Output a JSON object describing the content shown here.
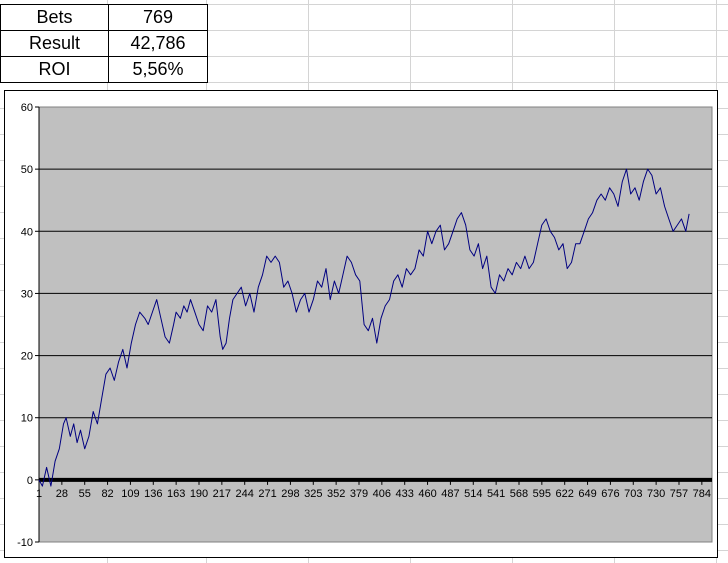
{
  "stats": [
    {
      "label": "Bets",
      "value": "769"
    },
    {
      "label": "Result",
      "value": "42,786"
    },
    {
      "label": "ROI",
      "value": "5,56%"
    }
  ],
  "chart_data": {
    "type": "line",
    "title": "",
    "xlabel": "",
    "ylabel": "",
    "ylim": [
      -10,
      60
    ],
    "yticks": [
      -10,
      0,
      10,
      20,
      30,
      40,
      50,
      60
    ],
    "xticks": [
      1,
      28,
      55,
      82,
      109,
      136,
      163,
      190,
      217,
      244,
      271,
      298,
      325,
      352,
      379,
      406,
      433,
      460,
      487,
      514,
      541,
      568,
      595,
      622,
      649,
      676,
      703,
      730,
      757,
      784
    ],
    "xlim": [
      1,
      796
    ],
    "grid": "horizontal",
    "legend": "none",
    "plot_background": "#c0c0c0",
    "line_color": "#000080",
    "series": [
      {
        "x": [
          1,
          5,
          10,
          15,
          20,
          25,
          30,
          33,
          38,
          42,
          46,
          50,
          55,
          60,
          65,
          70,
          75,
          80,
          85,
          90,
          95,
          100,
          105,
          110,
          115,
          120,
          126,
          130,
          135,
          140,
          145,
          150,
          155,
          160,
          163,
          168,
          172,
          176,
          180,
          185,
          190,
          195,
          200,
          205,
          210,
          215,
          218,
          222,
          226,
          230,
          235,
          240,
          245,
          250,
          255,
          260,
          265,
          270,
          275,
          280,
          285,
          290,
          295,
          300,
          305,
          310,
          315,
          320,
          325,
          330,
          335,
          340,
          345,
          350,
          355,
          360,
          365,
          370,
          375,
          380,
          385,
          390,
          395,
          400,
          405,
          410,
          415,
          420,
          425,
          430,
          435,
          440,
          445,
          450,
          455,
          460,
          465,
          470,
          475,
          480,
          485,
          490,
          495,
          500,
          505,
          510,
          515,
          520,
          525,
          530,
          535,
          540,
          545,
          550,
          555,
          560,
          565,
          570,
          575,
          580,
          585,
          590,
          595,
          600,
          605,
          610,
          615,
          620,
          625,
          630,
          635,
          640,
          645,
          650,
          655,
          660,
          665,
          670,
          675,
          680,
          685,
          690,
          695,
          700,
          705,
          710,
          715,
          720,
          725,
          730,
          735,
          740,
          745,
          750,
          755,
          760,
          765,
          769
        ],
        "y": [
          0,
          -1,
          2,
          -1,
          3,
          5,
          9,
          10,
          7,
          9,
          6,
          8,
          5,
          7,
          11,
          9,
          13,
          17,
          18,
          16,
          19,
          21,
          18,
          22,
          25,
          27,
          26,
          25,
          27,
          29,
          26,
          23,
          22,
          25,
          27,
          26,
          28,
          27,
          29,
          27,
          25,
          24,
          28,
          27,
          29,
          23,
          21,
          22,
          26,
          29,
          30,
          31,
          28,
          30,
          27,
          31,
          33,
          36,
          35,
          36,
          35,
          31,
          32,
          30,
          27,
          29,
          30,
          27,
          29,
          32,
          31,
          34,
          29,
          32,
          30,
          33,
          36,
          35,
          33,
          32,
          25,
          24,
          26,
          22,
          26,
          28,
          29,
          32,
          33,
          31,
          34,
          33,
          34,
          37,
          36,
          40,
          38,
          40,
          41,
          37,
          38,
          40,
          42,
          43,
          41,
          37,
          36,
          38,
          34,
          36,
          31,
          30,
          33,
          32,
          34,
          33,
          35,
          34,
          36,
          34,
          35,
          38,
          41,
          42,
          40,
          39,
          37,
          38,
          34,
          35,
          38,
          38,
          40,
          42,
          43,
          45,
          46,
          45,
          47,
          46,
          44,
          48,
          50,
          46,
          47,
          45,
          48,
          50,
          49,
          46,
          47,
          44,
          42,
          40,
          41,
          42,
          40,
          42.8
        ]
      }
    ]
  }
}
